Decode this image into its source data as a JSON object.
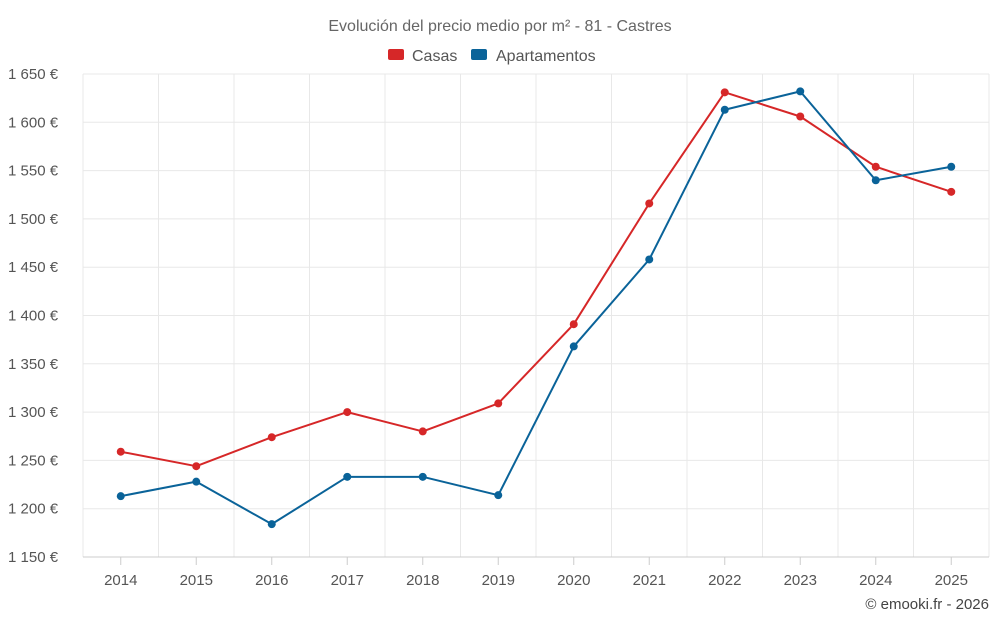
{
  "chart_data": {
    "type": "line",
    "title": "Evolución del precio medio por m² - 81 - Castres",
    "categories": [
      "2014",
      "2015",
      "2016",
      "2017",
      "2018",
      "2019",
      "2020",
      "2021",
      "2022",
      "2023",
      "2024",
      "2025"
    ],
    "series": [
      {
        "name": "Casas",
        "color": "#d62728",
        "values": [
          1259,
          1244,
          1274,
          1300,
          1280,
          1309,
          1391,
          1516,
          1631,
          1606,
          1554,
          1528
        ]
      },
      {
        "name": "Apartamentos",
        "color": "#0a6399",
        "values": [
          1213,
          1228,
          1184,
          1233,
          1233,
          1214,
          1368,
          1458,
          1613,
          1632,
          1540,
          1554
        ]
      }
    ],
    "ylim": [
      1150,
      1650
    ],
    "yticks": [
      1150,
      1200,
      1250,
      1300,
      1350,
      1400,
      1450,
      1500,
      1550,
      1600,
      1650
    ],
    "ytick_labels": [
      "1 150 €",
      "1 200 €",
      "1 250 €",
      "1 300 €",
      "1 350 €",
      "1 400 €",
      "1 450 €",
      "1 500 €",
      "1 550 €",
      "1 600 €",
      "1 650 €"
    ],
    "legend_position": "top-center",
    "grid": true
  },
  "credit": "© emooki.fr - 2026"
}
